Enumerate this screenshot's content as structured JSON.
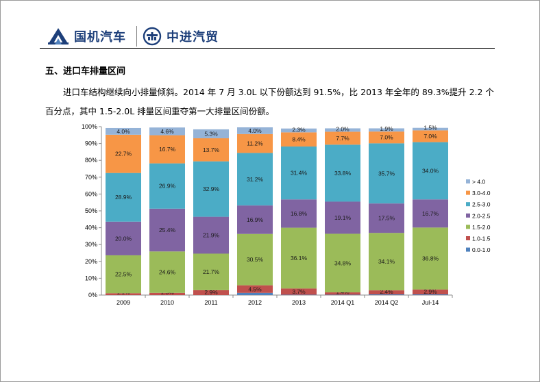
{
  "header": {
    "brand_left": "国机汽车",
    "brand_right": "中进汽贸",
    "left_logo_icon": "sinomach-logo-icon",
    "right_logo_icon": "cmit-logo-icon"
  },
  "section_title": "五、进口车排量区间",
  "paragraph": "进口车结构继续向小排量倾斜。2014 年 7 月 3.0L 以下份额达到 91.5%，比 2013 年全年的 89.3%提升 2.2 个百分点，其中 1.5-2.0L 排量区间重夺第一大排量区间份额。",
  "chart_data": {
    "type": "bar",
    "stacked": true,
    "percent_stacked": true,
    "categories": [
      "2009",
      "2010",
      "2011",
      "2012",
      "2013",
      "2014 Q1",
      "2014 Q2",
      "Jul-14"
    ],
    "ylim": [
      0,
      100
    ],
    "yticks": [
      "0%",
      "10%",
      "20%",
      "30%",
      "40%",
      "50%",
      "60%",
      "70%",
      "80%",
      "90%",
      "100%"
    ],
    "legend_position": "right",
    "series": [
      {
        "name": "0.0-1.0",
        "color": "#4f81bd",
        "values": [
          0.0,
          0.0,
          0.0,
          1.3,
          0.2,
          0.2,
          0.4,
          0.4
        ],
        "labels": [
          "",
          "",
          "",
          "",
          "",
          "",
          "",
          ""
        ]
      },
      {
        "name": "1.0-1.5",
        "color": "#c0504d",
        "values": [
          1.1,
          1.3,
          2.9,
          4.5,
          3.7,
          1.4,
          2.4,
          2.9
        ],
        "labels": [
          "1.1%",
          "1.3%",
          "2.9%",
          "4.5%",
          "3.7%",
          "1.4%",
          "2.4%",
          "2.9%"
        ]
      },
      {
        "name": "1.5-2.0",
        "color": "#9bbb59",
        "values": [
          22.5,
          24.6,
          21.7,
          30.5,
          36.1,
          34.8,
          34.1,
          36.8
        ],
        "labels": [
          "22.5%",
          "24.6%",
          "21.7%",
          "30.5%",
          "36.1%",
          "34.8%",
          "34.1%",
          "36.8%"
        ]
      },
      {
        "name": "2.0-2.5",
        "color": "#8064a2",
        "values": [
          20.0,
          25.4,
          21.9,
          16.9,
          16.8,
          19.1,
          17.5,
          16.7
        ],
        "labels": [
          "20.0%",
          "25.4%",
          "21.9%",
          "16.9%",
          "16.8%",
          "19.1%",
          "17.5%",
          "16.7%"
        ]
      },
      {
        "name": "2.5-3.0",
        "color": "#4bacc6",
        "values": [
          28.9,
          26.9,
          32.9,
          31.2,
          31.4,
          33.8,
          35.7,
          34.0
        ],
        "labels": [
          "28.9%",
          "26.9%",
          "32.9%",
          "31.2%",
          "31.4%",
          "33.8%",
          "35.7%",
          "34.0%"
        ]
      },
      {
        "name": "3.0-4.0",
        "color": "#f79646",
        "values": [
          22.7,
          16.7,
          13.7,
          11.2,
          8.4,
          7.7,
          7.0,
          7.0
        ],
        "labels": [
          "22.7%",
          "16.7%",
          "13.7%",
          "11.2%",
          "8.4%",
          "7.7%",
          "7.0%",
          "7.0%"
        ]
      },
      {
        "name": "> 4.0",
        "color": "#95b3d7",
        "values": [
          4.0,
          4.6,
          5.3,
          4.0,
          2.3,
          2.0,
          1.9,
          1.5
        ],
        "labels": [
          "4.0%",
          "4.6%",
          "5.3%",
          "4.0%",
          "2.3%",
          "2.0%",
          "1.9%",
          "1.5%"
        ]
      }
    ],
    "legend_order": [
      "> 4.0",
      "3.0-4.0",
      "2.5-3.0",
      "2.0-2.5",
      "1.5-2.0",
      "1.0-1.5",
      "0.0-1.0"
    ]
  }
}
